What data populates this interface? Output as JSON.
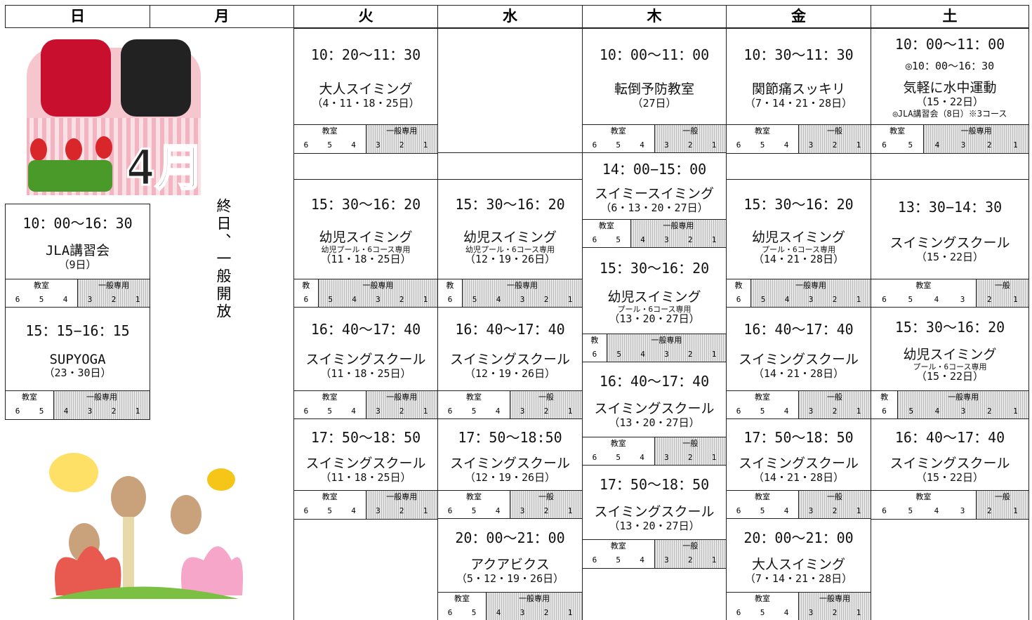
{
  "header": {
    "days": [
      "日",
      "月",
      "火",
      "水",
      "木",
      "金",
      "土"
    ]
  },
  "month_badge": "4月",
  "monday_note": "終日、一般開放",
  "columns": [
    {
      "events": [
        {
          "time": "10：00～16：30",
          "title": "JLA講習会",
          "dates": "（9日）",
          "lanes": {
            "left": "教室",
            "right": "一般専用",
            "left_numbers": [
              6,
              5,
              4
            ],
            "right_numbers": [
              3,
              2,
              1
            ]
          }
        },
        {
          "time": "15：15−16：15",
          "title": "SUPYOGA",
          "dates": "（23・30日）",
          "lanes": {
            "left": "教室",
            "right": "一般専用",
            "left_numbers": [
              6,
              5
            ],
            "right_numbers": [
              4,
              3,
              2,
              1
            ]
          }
        }
      ]
    },
    {
      "events": []
    },
    {
      "events": [
        {
          "time": "10：20～11：30",
          "title": "大人スイミング",
          "dates": "（4・11・18・25日）",
          "lanes": {
            "left": "教室",
            "right": "一般専用",
            "left_numbers": [
              6,
              5,
              4
            ],
            "right_numbers": [
              3,
              2,
              1
            ]
          }
        },
        {
          "time": "15：30～16：20",
          "title": "幼児スイミング",
          "note": "幼児プール・6コース専用",
          "dates": "（11・18・25日）",
          "lanes": {
            "left": "教",
            "right": "一般専用",
            "left_numbers": [
              6
            ],
            "right_numbers": [
              5,
              4,
              3,
              2,
              1
            ]
          }
        },
        {
          "time": "16：40～17：40",
          "title": "スイミングスクール",
          "dates": "（11・18・25日）",
          "lanes": {
            "left": "教室",
            "right": "一般専用",
            "left_numbers": [
              6,
              5,
              4
            ],
            "right_numbers": [
              3,
              2,
              1
            ]
          }
        },
        {
          "time": "17：50～18：50",
          "title": "スイミングスクール",
          "dates": "（11・18・25日）",
          "lanes": {
            "left": "教室",
            "right": "一般専用",
            "left_numbers": [
              6,
              5,
              4
            ],
            "right_numbers": [
              3,
              2,
              1
            ]
          }
        }
      ]
    },
    {
      "events": [
        {
          "time": "15：30～16：20",
          "title": "幼児スイミング",
          "note": "幼児プール・6コース専用",
          "dates": "（12・19・26日）",
          "lanes": {
            "left": "教",
            "right": "一般専用",
            "left_numbers": [
              6
            ],
            "right_numbers": [
              5,
              4,
              3,
              2,
              1
            ]
          }
        },
        {
          "time": "16：40～17：40",
          "title": "スイミングスクール",
          "dates": "（12・19・26日）",
          "lanes": {
            "left": "教室",
            "right": "一般",
            "left_numbers": [
              6,
              5,
              4
            ],
            "right_numbers": [
              3,
              2,
              1
            ]
          }
        },
        {
          "time": "17：50～18:50",
          "title": "スイミングスクール",
          "dates": "（12・19・26日）",
          "lanes": {
            "left": "教室",
            "right": "一般",
            "left_numbers": [
              6,
              5,
              4
            ],
            "right_numbers": [
              3,
              2,
              1
            ]
          }
        },
        {
          "time": "20：00～21：00",
          "title": "アクアビクス",
          "dates": "（5・12・19・26日）",
          "lanes": {
            "left": "教室",
            "right": "一般専用",
            "left_numbers": [
              6,
              5
            ],
            "right_numbers": [
              4,
              3,
              2,
              1
            ]
          }
        }
      ]
    },
    {
      "events": [
        {
          "time": "10：00～11：00",
          "title": "転倒予防教室",
          "dates": "（27日）",
          "lanes": {
            "left": "教室",
            "right": "一般",
            "left_numbers": [
              6,
              5,
              4
            ],
            "right_numbers": [
              3,
              2,
              1
            ]
          }
        },
        {
          "time": "14：00−15：00",
          "title": "スイミースイミング",
          "dates": "（6・13・20・27日）",
          "lanes": {
            "left": "教室",
            "right": "一般専用",
            "left_numbers": [
              6,
              5
            ],
            "right_numbers": [
              4,
              3,
              2,
              1
            ]
          }
        },
        {
          "time": "15：30～16：20",
          "title": "幼児スイミング",
          "note": "プール・6コース専用",
          "dates": "（13・20・27日）",
          "lanes": {
            "left": "教",
            "right": "一般専用",
            "left_numbers": [
              6
            ],
            "right_numbers": [
              5,
              4,
              3,
              2,
              1
            ]
          }
        },
        {
          "time": "16：40～17：40",
          "title": "スイミングスクール",
          "dates": "（13・20・27日）",
          "lanes": {
            "left": "教室",
            "right": "一般",
            "left_numbers": [
              6,
              5,
              4
            ],
            "right_numbers": [
              3,
              2,
              1
            ]
          }
        },
        {
          "time": "17：50～18：50",
          "title": "スイミングスクール",
          "dates": "（13・20・27日）",
          "lanes": {
            "left": "教室",
            "right": "一般",
            "left_numbers": [
              6,
              5,
              4
            ],
            "right_numbers": [
              3,
              2,
              1
            ]
          }
        }
      ]
    },
    {
      "events": [
        {
          "time": "10：30～11：30",
          "title": "関節痛スッキリ",
          "dates": "（7・14・21・28日）",
          "lanes": {
            "left": "教室",
            "right": "一般",
            "left_numbers": [
              6,
              5,
              4
            ],
            "right_numbers": [
              3,
              2,
              1
            ]
          }
        },
        {
          "time": "15：30～16：20",
          "title": "幼児スイミング",
          "note": "プール・6コース専用",
          "dates": "（14・21・28日）",
          "lanes": {
            "left": "教",
            "right": "一般専用",
            "left_numbers": [
              6
            ],
            "right_numbers": [
              5,
              4,
              3,
              2,
              1
            ]
          }
        },
        {
          "time": "16：40～17：40",
          "title": "スイミングスクール",
          "dates": "（14・21・28日）",
          "lanes": {
            "left": "教室",
            "right": "一般",
            "left_numbers": [
              6,
              5,
              4
            ],
            "right_numbers": [
              3,
              2,
              1
            ]
          }
        },
        {
          "time": "17：50～18：50",
          "title": "スイミングスクール",
          "dates": "（14・21・28日）",
          "lanes": {
            "left": "教室",
            "right": "一般",
            "left_numbers": [
              6,
              5,
              4
            ],
            "right_numbers": [
              3,
              2,
              1
            ]
          }
        },
        {
          "time": "20：00～21：00",
          "title": "大人スイミング",
          "dates": "（7・14・21・28日）",
          "lanes": {
            "left": "教室",
            "right": "一般専用",
            "left_numbers": [
              6,
              5,
              4
            ],
            "right_numbers": [
              3,
              2,
              1
            ]
          }
        }
      ]
    },
    {
      "events": [
        {
          "time": "10：00～11：00",
          "subtime": "◎10：00～16：30",
          "title": "気軽に水中運動",
          "dates": "（15・22日）",
          "extra": "◎JLA講習会（8日）※3コース",
          "lanes": {
            "left": "教室",
            "right": "一般専用",
            "left_numbers": [
              6,
              5
            ],
            "right_numbers": [
              4,
              3,
              2,
              1
            ]
          }
        },
        {
          "time": "13：30−14：30",
          "title": "スイミングスクール",
          "dates": "（15・22日）",
          "lanes": {
            "left": "教室",
            "right": "一般",
            "left_numbers": [
              6,
              5,
              4,
              3
            ],
            "right_numbers": [
              2,
              1
            ]
          }
        },
        {
          "time": "15：30～16：20",
          "title": "幼児スイミング",
          "note": "プール・6コース専用",
          "dates": "（15・22日）",
          "lanes": {
            "left": "教",
            "right": "一般専用",
            "left_numbers": [
              6
            ],
            "right_numbers": [
              5,
              4,
              3,
              2,
              1
            ]
          }
        },
        {
          "time": "16：40～17：40",
          "title": "スイミングスクール",
          "dates": "（15・22日）",
          "lanes": {
            "left": "教室",
            "right": "一般",
            "left_numbers": [
              6,
              5,
              4,
              3
            ],
            "right_numbers": [
              2,
              1
            ]
          }
        }
      ]
    }
  ]
}
